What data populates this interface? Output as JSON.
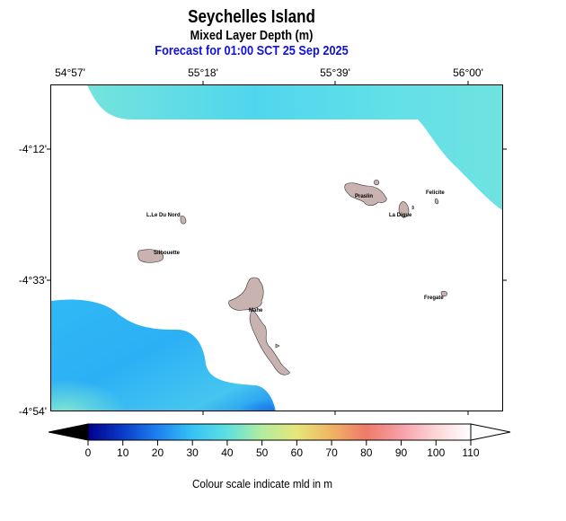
{
  "header": {
    "title": "Seychelles Island",
    "subtitle": "Mixed Layer Depth (m)",
    "forecast": "Forecast for  01:00 SCT 25 Sep 2025"
  },
  "axes": {
    "lon_labels": [
      "54°57'",
      "55°18'",
      "55°39'",
      "56°00'"
    ],
    "lat_labels": [
      "-4°12'",
      "-4°33'",
      "-4°54'"
    ]
  },
  "islands": [
    {
      "id": "mahe",
      "label": "Mahe"
    },
    {
      "id": "praslin",
      "label": "Praslin"
    },
    {
      "id": "la-digue",
      "label": "La Digue"
    },
    {
      "id": "felicite",
      "label": "Felicite"
    },
    {
      "id": "fregate",
      "label": "Fregate"
    },
    {
      "id": "silhouette",
      "label": "Silhouette"
    },
    {
      "id": "ile-du-nord",
      "label": "L.Le Du Nord"
    }
  ],
  "colorbar": {
    "ticks": [
      "0",
      "10",
      "20",
      "30",
      "40",
      "50",
      "60",
      "70",
      "80",
      "90",
      "100",
      "110"
    ],
    "colors": [
      "#00008c",
      "#0a3cc8",
      "#1e82f0",
      "#37c3f5",
      "#5ee0e0",
      "#b4ec9e",
      "#e6e67a",
      "#f0b464",
      "#ee7a6a",
      "#f6a0a8",
      "#fcd6d8",
      "#ffffff"
    ],
    "caption": "Colour scale indicate mld in m"
  }
}
